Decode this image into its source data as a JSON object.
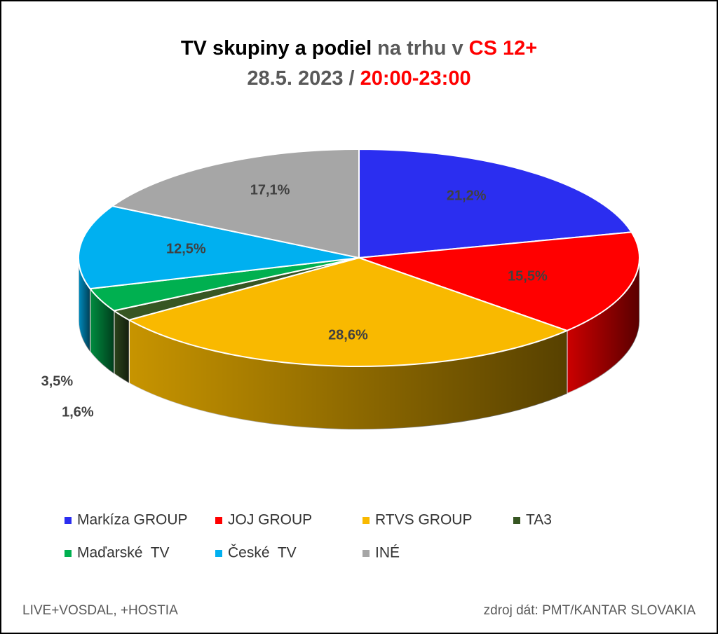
{
  "chart_data": {
    "type": "pie3d",
    "title": [
      {
        "text": "TV skupiny a podiel",
        "color": "#000000"
      },
      {
        "text": "na trhu v",
        "color": "#595959"
      },
      {
        "text": "CS 12+",
        "color": "#ff0000"
      }
    ],
    "subtitle": [
      {
        "text": "28.5. 2023 /",
        "color": "#595959"
      },
      {
        "text": "20:00-23:00",
        "color": "#ff0000"
      }
    ],
    "series": [
      {
        "name": "Markíza GROUP",
        "color": "#2b2ef0",
        "value": 21.2,
        "value_label": "21,2%"
      },
      {
        "name": "JOJ GROUP",
        "color": "#ff0000",
        "value": 15.5,
        "value_label": "15,5%"
      },
      {
        "name": "RTVS GROUP",
        "color": "#f9b900",
        "value": 28.6,
        "value_label": "28,6%"
      },
      {
        "name": "TA3",
        "color": "#375623",
        "value": 1.6,
        "value_label": "1,6%"
      },
      {
        "name": "Maďarské  TV",
        "color": "#00b050",
        "value": 3.5,
        "value_label": "3,5%"
      },
      {
        "name": "České  TV",
        "color": "#00b0f0",
        "value": 12.5,
        "value_label": "12,5%"
      },
      {
        "name": "INÉ",
        "color": "#a6a6a6",
        "value": 17.1,
        "value_label": "17,1%"
      }
    ],
    "footnote_left": "LIVE+VOSDAL, +HOSTIA",
    "footnote_right": "zdroj dát: PMT/KANTAR SLOVAKIA"
  }
}
